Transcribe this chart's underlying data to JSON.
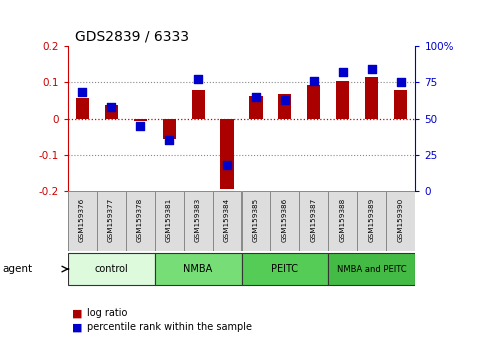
{
  "title": "GDS2839 / 6333",
  "samples": [
    "GSM159376",
    "GSM159377",
    "GSM159378",
    "GSM159381",
    "GSM159383",
    "GSM159384",
    "GSM159385",
    "GSM159386",
    "GSM159387",
    "GSM159388",
    "GSM159389",
    "GSM159390"
  ],
  "log_ratio": [
    0.058,
    0.038,
    -0.008,
    -0.055,
    0.078,
    -0.195,
    0.062,
    0.068,
    0.093,
    0.103,
    0.115,
    0.078
  ],
  "percentile": [
    68,
    58,
    45,
    35,
    77,
    18,
    65,
    63,
    76,
    82,
    84,
    75
  ],
  "bar_color": "#aa0000",
  "dot_color": "#0000cc",
  "groups": [
    {
      "label": "control",
      "start": 0,
      "end": 3,
      "color": "#ddfadd"
    },
    {
      "label": "NMBA",
      "start": 3,
      "end": 6,
      "color": "#77dd77"
    },
    {
      "label": "PEITC",
      "start": 6,
      "end": 9,
      "color": "#55cc55"
    },
    {
      "label": "NMBA and PEITC",
      "start": 9,
      "end": 12,
      "color": "#44bb44"
    }
  ],
  "ylim_left": [
    -0.2,
    0.2
  ],
  "ylim_right": [
    0,
    100
  ],
  "yticks_left": [
    -0.2,
    -0.1,
    0.0,
    0.1,
    0.2
  ],
  "yticks_right": [
    0,
    25,
    50,
    75,
    100
  ],
  "left_tick_color": "#cc0000",
  "right_tick_color": "#0000cc",
  "hlines": [
    -0.1,
    0.0,
    0.1
  ],
  "zero_line_color": "#cc0000",
  "bar_width": 0.45,
  "dot_size": 35,
  "legend_log_ratio": "log ratio",
  "legend_percentile": "percentile rank within the sample",
  "agent_label": "agent",
  "sample_cell_color": "#dddddd",
  "sample_cell_edge": "#888888",
  "group_border_color": "#333333"
}
